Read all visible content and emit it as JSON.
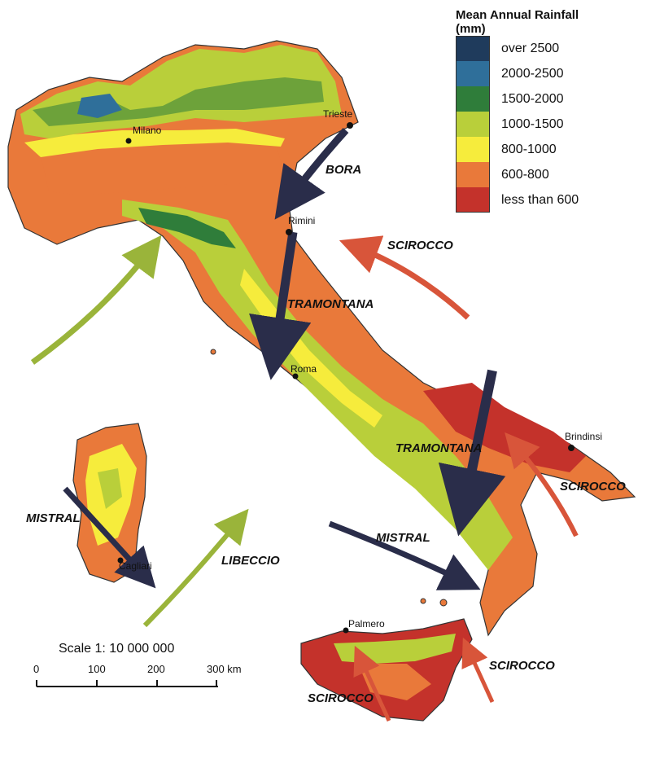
{
  "legend": {
    "title_line1": "Mean Annual Rainfall",
    "title_line2": "(mm)",
    "items": [
      {
        "label": "over 2500",
        "color": "#1f3b5c"
      },
      {
        "label": "2000-2500",
        "color": "#2f6f9a"
      },
      {
        "label": "1500-2000",
        "color": "#2f7d3a"
      },
      {
        "label": "1000-1500",
        "color": "#b9cf3a"
      },
      {
        "label": "800-1000",
        "color": "#f6ec3c"
      },
      {
        "label": "600-800",
        "color": "#e9793a"
      },
      {
        "label": "less than 600",
        "color": "#c4322b"
      }
    ]
  },
  "cities": {
    "milano": "Milano",
    "trieste": "Trieste",
    "rimini": "Rimini",
    "roma": "Roma",
    "brindisi": "Brindinsi",
    "cagliari": "Cagliari",
    "palermo": "Palmero"
  },
  "winds": {
    "bora": "BORA",
    "scirocco_north": "SCIROCCO",
    "tramontana_north": "TRAMONTANA",
    "tramontana_south": "TRAMONTANA",
    "scirocco_east": "SCIROCCO",
    "mistral_sardinia": "MISTRAL",
    "mistral_sea": "MISTRAL",
    "libeccio": "LIBECCIO",
    "scirocco_sicily_east": "SCIROCCO",
    "scirocco_sicily_south": "SCIROCCO"
  },
  "scale": {
    "title": "Scale 1: 10 000 000",
    "ticks": [
      "0",
      "100",
      "200",
      "300 km"
    ]
  },
  "arrow_colors": {
    "dark": "#2a2d4a",
    "green": "#9ab43a",
    "red": "#d8553a"
  }
}
